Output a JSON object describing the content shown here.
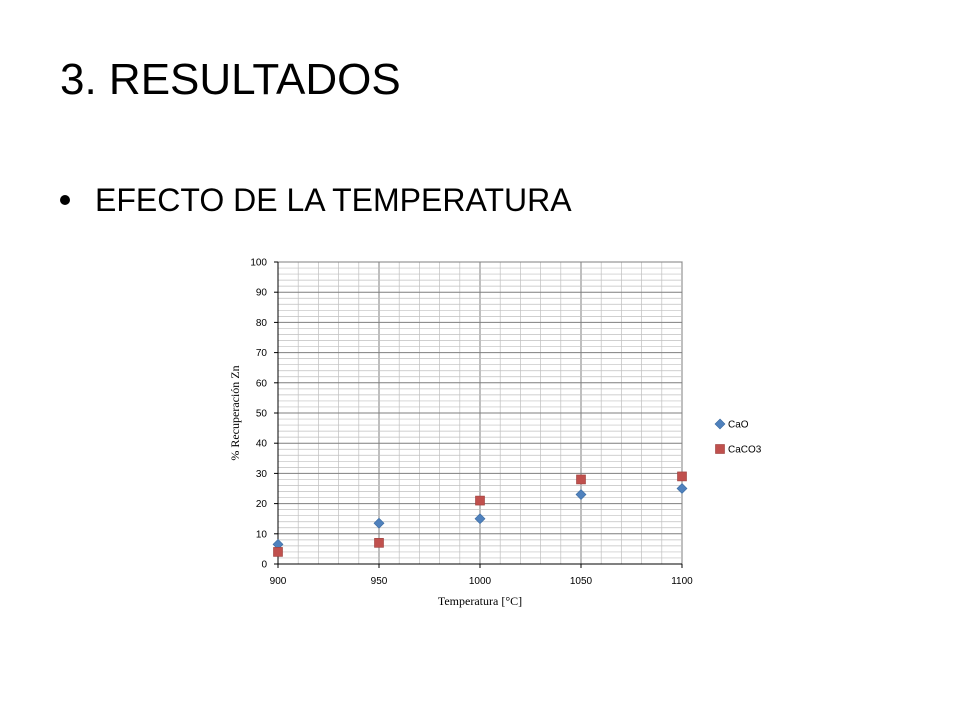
{
  "slide": {
    "title": "3. RESULTADOS",
    "bullet": "EFECTO DE LA TEMPERATURA"
  },
  "chart_data": {
    "type": "scatter",
    "title": "",
    "xlabel": "Temperatura [°C]",
    "ylabel": "% Recuperación Zn",
    "xlim": [
      900,
      1100
    ],
    "ylim": [
      0,
      100
    ],
    "x_ticks": [
      900,
      950,
      1000,
      1050,
      1100
    ],
    "y_ticks": [
      0,
      10,
      20,
      30,
      40,
      50,
      60,
      70,
      80,
      90,
      100
    ],
    "grid": true,
    "legend_position": "right",
    "series": [
      {
        "name": "CaO",
        "marker": "diamond",
        "color": "#4f81bd",
        "x": [
          900,
          950,
          1000,
          1050,
          1100
        ],
        "y": [
          6.5,
          13.5,
          15,
          23,
          25
        ]
      },
      {
        "name": "CaCO3",
        "marker": "square",
        "color": "#c0504d",
        "x": [
          900,
          950,
          1000,
          1050,
          1100
        ],
        "y": [
          4,
          7,
          21,
          28,
          29
        ]
      }
    ]
  }
}
